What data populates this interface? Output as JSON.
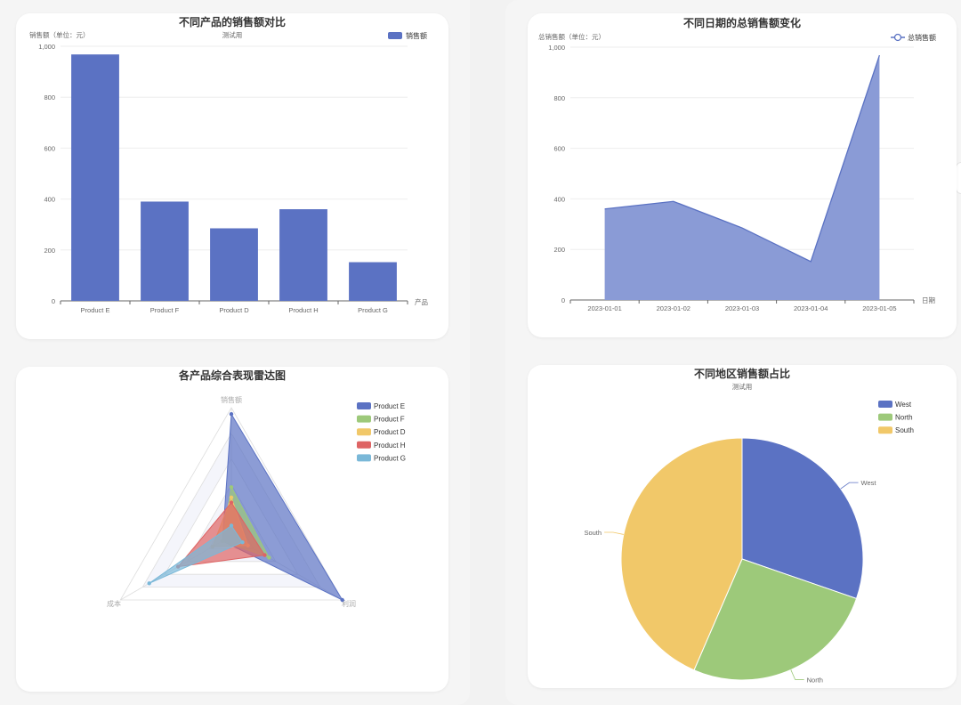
{
  "colors": {
    "blue": "#5b72c3",
    "green": "#9dc97a",
    "yellow": "#f1c869",
    "red": "#de6464",
    "teal": "#7ab8d8",
    "area": "#8a9bd6"
  },
  "chart_data": [
    {
      "type": "bar",
      "title": "不同产品的销售额对比",
      "subtitle": "测试用",
      "ylabel": "销售额（单位：元）",
      "xlabel": "产品",
      "legend": [
        "销售额"
      ],
      "legend_position": "top-right",
      "categories": [
        "Product E",
        "Product F",
        "Product D",
        "Product H",
        "Product G"
      ],
      "series": [
        {
          "name": "销售额",
          "values": [
            968,
            390,
            285,
            360,
            152
          ]
        }
      ],
      "ylim": [
        0,
        1000
      ],
      "yticks": [
        "0",
        "200",
        "400",
        "600",
        "800",
        "1,000"
      ],
      "grid": true
    },
    {
      "type": "area",
      "title": "不同日期的总销售额变化",
      "ylabel": "总销售额（单位：元）",
      "xlabel": "日期",
      "legend": [
        "总销售额"
      ],
      "legend_position": "top-right",
      "x": [
        "2023-01-01",
        "2023-01-02",
        "2023-01-03",
        "2023-01-04",
        "2023-01-05"
      ],
      "series": [
        {
          "name": "总销售额",
          "values": [
            360,
            390,
            285,
            152,
            968
          ]
        }
      ],
      "ylim": [
        0,
        1000
      ],
      "yticks": [
        "0",
        "200",
        "400",
        "600",
        "800",
        "1,000"
      ],
      "grid": true
    },
    {
      "type": "radar",
      "title": "各产品综合表现雷达图",
      "indicators": [
        "销售额",
        "利润",
        "成本"
      ],
      "legend_position": "top-right",
      "series": [
        {
          "name": "Product E",
          "values": [
            0.95,
            1.0,
            0.08
          ]
        },
        {
          "name": "Product F",
          "values": [
            0.38,
            0.34,
            0.08
          ]
        },
        {
          "name": "Product D",
          "values": [
            0.3,
            0.15,
            0.17
          ]
        },
        {
          "name": "Product H",
          "values": [
            0.26,
            0.3,
            0.48
          ]
        },
        {
          "name": "Product G",
          "values": [
            0.08,
            0.1,
            0.74
          ]
        }
      ]
    },
    {
      "type": "pie",
      "title": "不同地区销售额占比",
      "subtitle": "测试用",
      "legend_position": "top-right",
      "categories": [
        "West",
        "North",
        "South"
      ],
      "values": [
        30.3,
        26.2,
        43.5
      ]
    }
  ]
}
